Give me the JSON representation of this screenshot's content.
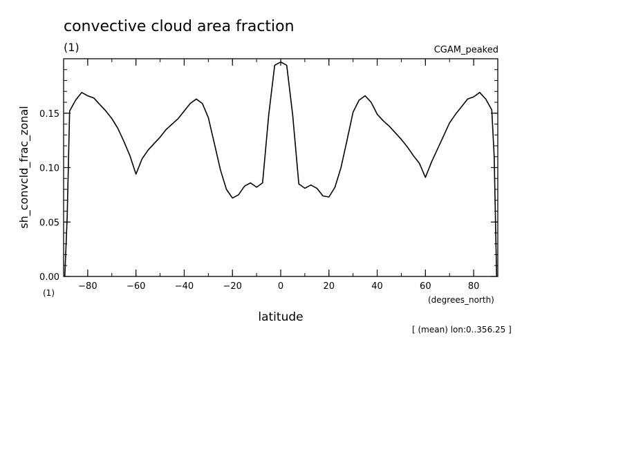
{
  "chart_data": {
    "type": "line",
    "title": "convective cloud area fraction",
    "subtitle": "(1)",
    "dataset_label": "CGAM_peaked",
    "ylabel": "sh_convcld_frac_zonal",
    "yunits": "(1)",
    "xlabel": "latitude",
    "xunits": "(degrees_north)",
    "footnote": "[ (mean) lon:0..356.25 ]",
    "xlim": [
      -90,
      90
    ],
    "ylim": [
      0,
      0.2
    ],
    "xticks": [
      -80,
      -60,
      -40,
      -20,
      0,
      20,
      40,
      60,
      80
    ],
    "yticks": [
      0.0,
      0.05,
      0.1,
      0.15
    ],
    "xtick_labels": [
      "−80",
      "−60",
      "−40",
      "−20",
      "0",
      "20",
      "40",
      "60",
      "80"
    ],
    "ytick_labels": [
      "0.00",
      "0.05",
      "0.10",
      "0.15"
    ],
    "grid": false,
    "line_color": "#000000",
    "series": [
      {
        "x": [
          -89.5,
          -88.5,
          -87.5,
          -85,
          -82.5,
          -80,
          -77.5,
          -75,
          -72.5,
          -70,
          -67.5,
          -65,
          -62.5,
          -60,
          -57.5,
          -55,
          -52.5,
          -50,
          -47.5,
          -45,
          -42.5,
          -40,
          -37.5,
          -35,
          -32.5,
          -30,
          -27.5,
          -25,
          -22.5,
          -20,
          -17.5,
          -15,
          -12.5,
          -10,
          -7.5,
          -5,
          -2.5,
          0,
          2.5,
          5,
          7.5,
          10,
          12.5,
          15,
          17.5,
          20,
          22.5,
          25,
          27.5,
          30,
          32.5,
          35,
          37.5,
          40,
          42.5,
          45,
          47.5,
          50,
          52.5,
          55,
          57.5,
          60,
          62.5,
          65,
          67.5,
          70,
          72.5,
          75,
          77.5,
          80,
          82.5,
          85,
          87.5,
          88.5,
          89.5
        ],
        "y": [
          0.0,
          0.055,
          0.152,
          0.162,
          0.169,
          0.166,
          0.164,
          0.158,
          0.152,
          0.145,
          0.136,
          0.124,
          0.111,
          0.094,
          0.108,
          0.116,
          0.122,
          0.128,
          0.135,
          0.14,
          0.145,
          0.152,
          0.159,
          0.163,
          0.159,
          0.146,
          0.122,
          0.098,
          0.08,
          0.072,
          0.075,
          0.083,
          0.086,
          0.082,
          0.086,
          0.148,
          0.194,
          0.197,
          0.194,
          0.148,
          0.085,
          0.081,
          0.084,
          0.081,
          0.074,
          0.073,
          0.082,
          0.1,
          0.125,
          0.151,
          0.162,
          0.166,
          0.16,
          0.149,
          0.143,
          0.138,
          0.132,
          0.126,
          0.119,
          0.111,
          0.104,
          0.091,
          0.105,
          0.117,
          0.129,
          0.141,
          0.149,
          0.156,
          0.163,
          0.165,
          0.169,
          0.163,
          0.153,
          0.11,
          0.0
        ]
      }
    ]
  }
}
